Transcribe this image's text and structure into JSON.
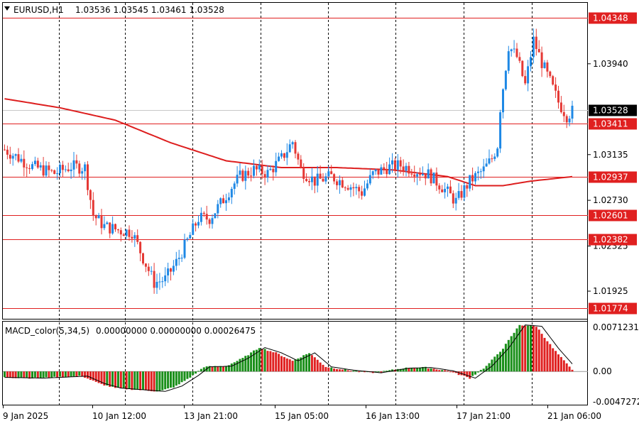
{
  "header": {
    "symbol": "EURUSD,H1",
    "ohlc": "1.03536 1.03545 1.03461 1.03528"
  },
  "macd_header": {
    "name": "MACD_color(5,34,5)",
    "values": "0.00000000 0.00000000 0.00026475"
  },
  "colors": {
    "up_candle": "#1e88e5",
    "down_candle": "#e53935",
    "level": "#e02020",
    "ma": "#dd1e1e",
    "macd_up": "#1a8f1a",
    "macd_down": "#e02020",
    "grid": "#000000",
    "current_price_bg": "#000000"
  },
  "chart_data": [
    {
      "type": "candlestick",
      "title": "EURUSD,H1",
      "ylim": [
        1.0168,
        1.0448
      ],
      "price_ticks": [
        "1.03940",
        "1.03135",
        "1.02730",
        "1.02325",
        "1.01925"
      ],
      "current_price": "1.03528",
      "levels": [
        "1.04348",
        "1.03411",
        "1.02937",
        "1.02601",
        "1.02382",
        "1.01774"
      ],
      "time_labels": [
        "9 Jan 2025",
        "10 Jan 12:00",
        "13 Jan 21:00",
        "15 Jan 05:00",
        "16 Jan 13:00",
        "17 Jan 21:00",
        "21 Jan 06:00"
      ],
      "anchors": [
        {
          "i": 0,
          "p": 1.0318
        },
        {
          "i": 10,
          "p": 1.0303
        },
        {
          "i": 18,
          "p": 1.0297
        },
        {
          "i": 24,
          "p": 1.0303
        },
        {
          "i": 29,
          "p": 1.0302
        },
        {
          "i": 32,
          "p": 1.026
        },
        {
          "i": 36,
          "p": 1.025
        },
        {
          "i": 42,
          "p": 1.0246
        },
        {
          "i": 46,
          "p": 1.0245
        },
        {
          "i": 50,
          "p": 1.0222
        },
        {
          "i": 54,
          "p": 1.02
        },
        {
          "i": 58,
          "p": 1.0203
        },
        {
          "i": 62,
          "p": 1.0218
        },
        {
          "i": 66,
          "p": 1.0237
        },
        {
          "i": 70,
          "p": 1.0257
        },
        {
          "i": 74,
          "p": 1.0257
        },
        {
          "i": 78,
          "p": 1.027
        },
        {
          "i": 82,
          "p": 1.0285
        },
        {
          "i": 85,
          "p": 1.0294
        },
        {
          "i": 90,
          "p": 1.03
        },
        {
          "i": 95,
          "p": 1.0297
        },
        {
          "i": 100,
          "p": 1.031
        },
        {
          "i": 104,
          "p": 1.0325
        },
        {
          "i": 107,
          "p": 1.03
        },
        {
          "i": 112,
          "p": 1.029
        },
        {
          "i": 118,
          "p": 1.0294
        },
        {
          "i": 124,
          "p": 1.0287
        },
        {
          "i": 129,
          "p": 1.028
        },
        {
          "i": 133,
          "p": 1.0296
        },
        {
          "i": 138,
          "p": 1.0302
        },
        {
          "i": 143,
          "p": 1.0304
        },
        {
          "i": 148,
          "p": 1.03
        },
        {
          "i": 153,
          "p": 1.0296
        },
        {
          "i": 158,
          "p": 1.0285
        },
        {
          "i": 163,
          "p": 1.0272
        },
        {
          "i": 168,
          "p": 1.029
        },
        {
          "i": 173,
          "p": 1.03
        },
        {
          "i": 176,
          "p": 1.031
        },
        {
          "i": 178,
          "p": 1.0322
        },
        {
          "i": 179,
          "p": 1.0355
        },
        {
          "i": 182,
          "p": 1.041
        },
        {
          "i": 185,
          "p": 1.04
        },
        {
          "i": 188,
          "p": 1.0375
        },
        {
          "i": 191,
          "p": 1.0415
        },
        {
          "i": 194,
          "p": 1.0395
        },
        {
          "i": 197,
          "p": 1.0378
        },
        {
          "i": 200,
          "p": 1.036
        },
        {
          "i": 203,
          "p": 1.0348
        },
        {
          "i": 205,
          "p": 1.0352
        }
      ],
      "ma_path": [
        {
          "i": 0,
          "p": 1.0363
        },
        {
          "i": 20,
          "p": 1.0355
        },
        {
          "i": 40,
          "p": 1.0344
        },
        {
          "i": 60,
          "p": 1.0324
        },
        {
          "i": 80,
          "p": 1.0308
        },
        {
          "i": 100,
          "p": 1.0302
        },
        {
          "i": 120,
          "p": 1.0302
        },
        {
          "i": 140,
          "p": 1.03
        },
        {
          "i": 160,
          "p": 1.0294
        },
        {
          "i": 170,
          "p": 1.0286
        },
        {
          "i": 180,
          "p": 1.0286
        },
        {
          "i": 190,
          "p": 1.029
        },
        {
          "i": 205,
          "p": 1.0294
        }
      ]
    },
    {
      "type": "histogram",
      "title": "MACD_color(5,34,5)",
      "ylim": [
        -0.005,
        0.0075
      ],
      "ticks": [
        "0.0071231",
        "0.00",
        "-0.0047272"
      ],
      "anchors": [
        {
          "i": 0,
          "v": -0.0009
        },
        {
          "i": 12,
          "v": -0.001
        },
        {
          "i": 28,
          "v": -0.0007
        },
        {
          "i": 34,
          "v": -0.0018
        },
        {
          "i": 40,
          "v": -0.0025
        },
        {
          "i": 56,
          "v": -0.003
        },
        {
          "i": 62,
          "v": -0.0022
        },
        {
          "i": 68,
          "v": -0.0006
        },
        {
          "i": 72,
          "v": 0.0007
        },
        {
          "i": 80,
          "v": 0.0008
        },
        {
          "i": 86,
          "v": 0.002
        },
        {
          "i": 92,
          "v": 0.0036
        },
        {
          "i": 98,
          "v": 0.0028
        },
        {
          "i": 104,
          "v": 0.0016
        },
        {
          "i": 110,
          "v": 0.0028
        },
        {
          "i": 116,
          "v": 0.0007
        },
        {
          "i": 124,
          "v": 0.0002
        },
        {
          "i": 134,
          "v": -0.0002
        },
        {
          "i": 144,
          "v": 0.0005
        },
        {
          "i": 152,
          "v": 0.0006
        },
        {
          "i": 160,
          "v": 0.0001
        },
        {
          "i": 168,
          "v": -0.001
        },
        {
          "i": 174,
          "v": 0.0008
        },
        {
          "i": 180,
          "v": 0.0035
        },
        {
          "i": 186,
          "v": 0.007
        },
        {
          "i": 192,
          "v": 0.0068
        },
        {
          "i": 198,
          "v": 0.0035
        },
        {
          "i": 205,
          "v": 0.0002
        }
      ]
    }
  ]
}
